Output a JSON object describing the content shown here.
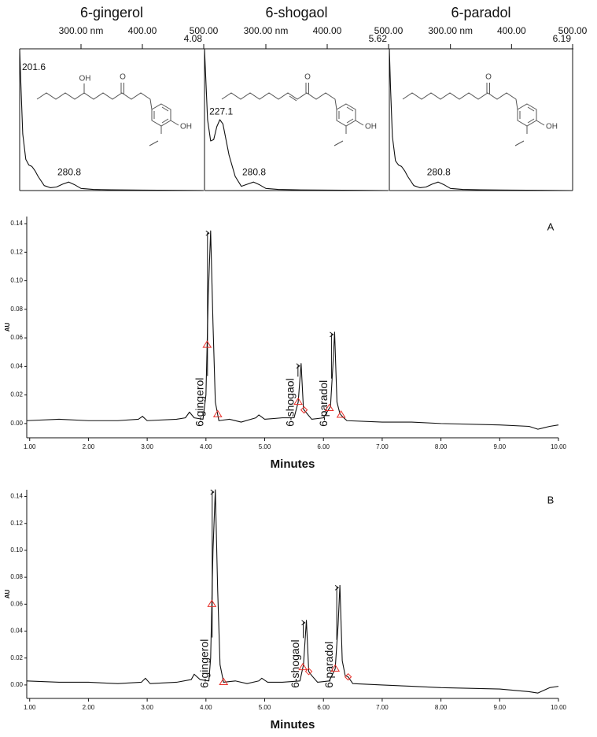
{
  "chart_data": [
    {
      "type": "line",
      "title": "6-gingerol",
      "xaxis_position": "top",
      "x": [
        200,
        202,
        205,
        210,
        215,
        220,
        225,
        230,
        240,
        250,
        260,
        270,
        280,
        290,
        300,
        320,
        350,
        400,
        450,
        500
      ],
      "series": [
        {
          "color": "#111111",
          "values": [
            1.0,
            0.75,
            0.4,
            0.22,
            0.18,
            0.17,
            0.14,
            0.1,
            0.035,
            0.02,
            0.025,
            0.045,
            0.06,
            0.04,
            0.015,
            0.008,
            0.005,
            0.003,
            0.002,
            0.0
          ]
        }
      ],
      "xlim": [
        200,
        500
      ],
      "ylim": [
        0,
        1
      ],
      "xticks": [
        {
          "value": 300,
          "label": "300.00 nm"
        },
        {
          "value": 400,
          "label": "400.00"
        },
        {
          "value": 500,
          "label": "500.00"
        }
      ],
      "annotations": [
        {
          "label": "201.6",
          "x": 201.6
        },
        {
          "label": "280.8",
          "x": 280.8
        }
      ],
      "corner_label": "4.08",
      "structure_labels": [
        "OH",
        "O",
        "OH"
      ]
    },
    {
      "type": "line",
      "title": "6-shogaol",
      "xaxis_position": "top",
      "x": [
        200,
        202,
        205,
        210,
        215,
        220,
        225,
        230,
        240,
        250,
        260,
        270,
        280,
        290,
        300,
        320,
        350,
        400,
        450,
        500
      ],
      "series": [
        {
          "color": "#111111",
          "values": [
            1.0,
            0.8,
            0.5,
            0.35,
            0.36,
            0.45,
            0.5,
            0.47,
            0.25,
            0.1,
            0.03,
            0.045,
            0.06,
            0.04,
            0.015,
            0.008,
            0.005,
            0.003,
            0.002,
            0.0
          ]
        }
      ],
      "xlim": [
        200,
        500
      ],
      "ylim": [
        0,
        1
      ],
      "xticks": [
        {
          "value": 300,
          "label": "300.00 nm"
        },
        {
          "value": 400,
          "label": "400.00"
        },
        {
          "value": 500,
          "label": "500.00"
        }
      ],
      "annotations": [
        {
          "label": "227.1",
          "x": 227.1
        },
        {
          "label": "280.8",
          "x": 280.8
        }
      ],
      "corner_label": "5.62",
      "structure_labels": [
        "O",
        "OH"
      ]
    },
    {
      "type": "line",
      "title": "6-paradol",
      "xaxis_position": "top",
      "x": [
        200,
        202,
        205,
        210,
        215,
        220,
        225,
        230,
        240,
        250,
        260,
        270,
        280,
        290,
        300,
        320,
        350,
        400,
        450,
        500
      ],
      "series": [
        {
          "color": "#111111",
          "values": [
            1.0,
            0.72,
            0.38,
            0.21,
            0.18,
            0.17,
            0.14,
            0.1,
            0.035,
            0.02,
            0.025,
            0.045,
            0.06,
            0.04,
            0.015,
            0.008,
            0.005,
            0.003,
            0.002,
            0.0
          ]
        }
      ],
      "xlim": [
        200,
        500
      ],
      "ylim": [
        0,
        1
      ],
      "xticks": [
        {
          "value": 300,
          "label": "300.00 nm"
        },
        {
          "value": 400,
          "label": "400.00"
        },
        {
          "value": 500,
          "label": "500.00"
        }
      ],
      "annotations": [
        {
          "label": "280.8",
          "x": 280.8
        }
      ],
      "corner_label": "6.19",
      "structure_labels": [
        "O",
        "OH"
      ]
    },
    {
      "type": "line",
      "panel_label": "A",
      "xlabel": "Minutes",
      "ylabel": "AU",
      "xaxis_position": "bottom",
      "x": [
        0.95,
        1.5,
        2.0,
        2.5,
        2.85,
        2.92,
        3.0,
        3.5,
        3.65,
        3.72,
        3.8,
        3.95,
        4.0,
        4.04,
        4.08,
        4.12,
        4.16,
        4.22,
        4.4,
        4.6,
        4.85,
        4.9,
        5.0,
        5.3,
        5.5,
        5.57,
        5.62,
        5.66,
        5.7,
        5.8,
        6.0,
        6.12,
        6.16,
        6.19,
        6.23,
        6.28,
        6.32,
        6.4,
        7.0,
        7.5,
        8.0,
        9.0,
        9.5,
        9.65,
        9.75,
        9.85,
        10.0
      ],
      "series": [
        {
          "color": "#111111",
          "values": [
            0.002,
            0.003,
            0.002,
            0.002,
            0.003,
            0.005,
            0.002,
            0.003,
            0.004,
            0.008,
            0.004,
            0.003,
            0.02,
            0.09,
            0.135,
            0.07,
            0.015,
            0.002,
            0.003,
            0.001,
            0.004,
            0.006,
            0.003,
            0.004,
            0.004,
            0.015,
            0.042,
            0.01,
            0.008,
            0.003,
            0.004,
            0.012,
            0.04,
            0.064,
            0.015,
            0.007,
            0.005,
            0.002,
            0.001,
            0.001,
            0,
            -0.001,
            -0.002,
            -0.004,
            -0.003,
            -0.002,
            -0.001
          ]
        }
      ],
      "xlim": [
        0.95,
        10
      ],
      "ylim": [
        -0.01,
        0.145
      ],
      "xticks": [
        {
          "value": 1,
          "label": "1.00"
        },
        {
          "value": 2,
          "label": "2.00"
        },
        {
          "value": 3,
          "label": "3.00"
        },
        {
          "value": 4,
          "label": "4.00"
        },
        {
          "value": 5,
          "label": "5.00"
        },
        {
          "value": 6,
          "label": "6.00"
        },
        {
          "value": 7,
          "label": "7.00"
        },
        {
          "value": 8,
          "label": "8.00"
        },
        {
          "value": 9,
          "label": "9.00"
        },
        {
          "value": 10,
          "label": "10.00"
        }
      ],
      "yticks": [
        {
          "value": 0,
          "label": "0.00"
        },
        0.02,
        0.04,
        0.06,
        0.08,
        {
          "value": 0.1,
          "label": "0.10"
        },
        0.12,
        0.14
      ],
      "peak_labels": [
        {
          "label": "6-gingerol",
          "x": 4.08
        },
        {
          "label": "6-shogaol",
          "x": 5.62
        },
        {
          "label": "6-paradol",
          "x": 6.19
        }
      ],
      "integration_marks": [
        {
          "x": 4.02,
          "shape": "triangle"
        },
        {
          "x": 4.2,
          "shape": "triangle"
        },
        {
          "x": 5.57,
          "shape": "triangle"
        },
        {
          "x": 5.67,
          "shape": "diamond"
        },
        {
          "x": 6.1,
          "shape": "triangle"
        },
        {
          "x": 6.3,
          "shape": "triangle"
        }
      ]
    },
    {
      "type": "line",
      "panel_label": "B",
      "xlabel": "Minutes",
      "ylabel": "AU",
      "xaxis_position": "bottom",
      "x": [
        0.95,
        1.5,
        2.0,
        2.5,
        2.9,
        2.97,
        3.05,
        3.5,
        3.75,
        3.8,
        3.9,
        4.05,
        4.08,
        4.12,
        4.16,
        4.2,
        4.24,
        4.3,
        4.5,
        4.7,
        4.9,
        4.95,
        5.05,
        5.3,
        5.6,
        5.66,
        5.71,
        5.75,
        5.8,
        5.9,
        6.1,
        6.2,
        6.25,
        6.28,
        6.32,
        6.37,
        6.42,
        6.5,
        7.0,
        7.5,
        8.0,
        9.0,
        9.5,
        9.65,
        9.75,
        9.85,
        10.0
      ],
      "series": [
        {
          "color": "#111111",
          "values": [
            0.003,
            0.002,
            0.002,
            0.001,
            0.002,
            0.005,
            0.001,
            0.002,
            0.004,
            0.008,
            0.004,
            0.003,
            0.02,
            0.1,
            0.145,
            0.07,
            0.015,
            0.002,
            0.003,
            0.001,
            0.003,
            0.005,
            0.002,
            0.002,
            0.003,
            0.015,
            0.048,
            0.01,
            0.007,
            0.002,
            0.003,
            0.012,
            0.045,
            0.074,
            0.018,
            0.007,
            0.006,
            0.001,
            0,
            -0.001,
            -0.002,
            -0.003,
            -0.005,
            -0.006,
            -0.004,
            -0.002,
            -0.001
          ]
        }
      ],
      "xlim": [
        0.95,
        10
      ],
      "ylim": [
        -0.01,
        0.145
      ],
      "xticks": [
        {
          "value": 1,
          "label": "1.00"
        },
        {
          "value": 2,
          "label": "2.00"
        },
        {
          "value": 3,
          "label": "3.00"
        },
        {
          "value": 4,
          "label": "4.00"
        },
        {
          "value": 5,
          "label": "5.00"
        },
        {
          "value": 6,
          "label": "6.00"
        },
        {
          "value": 7,
          "label": "7.00"
        },
        {
          "value": 8,
          "label": "8.00"
        },
        {
          "value": 9,
          "label": "9.00"
        },
        {
          "value": 10,
          "label": "10.00"
        }
      ],
      "yticks": [
        {
          "value": 0,
          "label": "0.00"
        },
        0.02,
        0.04,
        0.06,
        0.08,
        {
          "value": 0.1,
          "label": "0.10"
        },
        0.12,
        0.14
      ],
      "peak_labels": [
        {
          "label": "6-gingerol",
          "x": 4.16
        },
        {
          "label": "6-shogaol",
          "x": 5.71
        },
        {
          "label": "6-paradol",
          "x": 6.28
        }
      ],
      "integration_marks": [
        {
          "x": 4.1,
          "shape": "triangle"
        },
        {
          "x": 4.3,
          "shape": "triangle"
        },
        {
          "x": 5.65,
          "shape": "triangle"
        },
        {
          "x": 5.75,
          "shape": "diamond"
        },
        {
          "x": 6.2,
          "shape": "triangle"
        },
        {
          "x": 6.42,
          "shape": "diamond"
        }
      ]
    }
  ]
}
